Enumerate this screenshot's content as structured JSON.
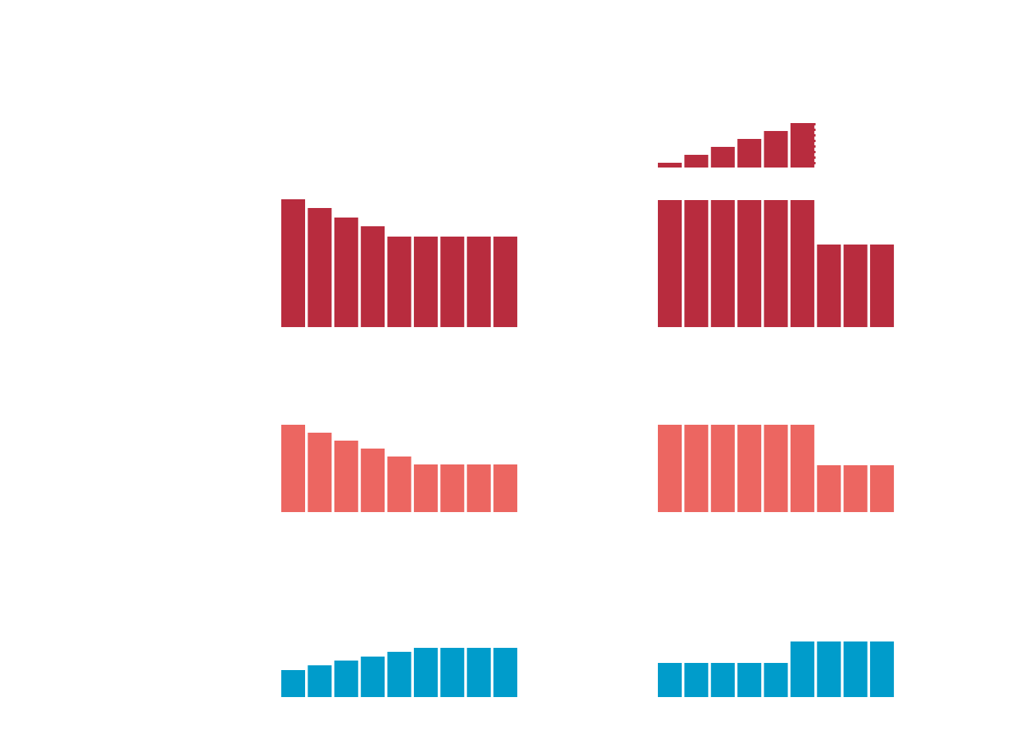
{
  "chart_data": [
    {
      "type": "bar",
      "color": "#b82c3e",
      "ylim": [
        0,
        200
      ],
      "values": [
        6,
        16,
        26,
        36,
        46,
        56
      ]
    },
    {
      "type": "bar",
      "color": "#b82c3e",
      "ylim": [
        0,
        200
      ],
      "values": [
        161,
        150,
        138,
        127,
        114,
        114,
        114,
        114,
        114
      ]
    },
    {
      "type": "bar",
      "color": "#b82c3e",
      "ylim": [
        0,
        200
      ],
      "values": [
        160,
        160,
        160,
        160,
        160,
        160,
        104,
        104,
        104
      ]
    },
    {
      "type": "bar",
      "color": "#ec6661",
      "ylim": [
        0,
        200
      ],
      "values": [
        110,
        100,
        90,
        80,
        70,
        60,
        60,
        60,
        60
      ]
    },
    {
      "type": "bar",
      "color": "#ec6661",
      "ylim": [
        0,
        200
      ],
      "values": [
        110,
        110,
        110,
        110,
        110,
        110,
        59,
        59,
        59
      ]
    },
    {
      "type": "bar",
      "color": "#009ccb",
      "ylim": [
        0,
        200
      ],
      "values": [
        34,
        40,
        46,
        51,
        57,
        62,
        62,
        62,
        62
      ]
    },
    {
      "type": "bar",
      "color": "#009ccb",
      "ylim": [
        0,
        200
      ],
      "values": [
        43,
        43,
        43,
        43,
        43,
        70,
        70,
        70,
        70
      ]
    }
  ]
}
